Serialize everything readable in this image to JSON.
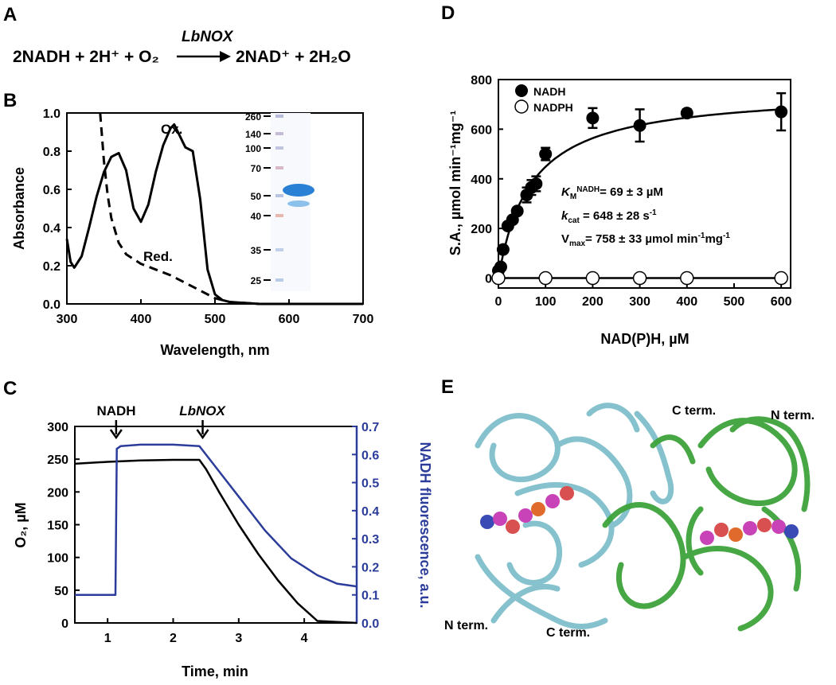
{
  "panels": {
    "A": {
      "letter": "A",
      "enzyme_label": "LbNOX",
      "eq_left": "2NADH + 2H⁺ + O₂",
      "eq_right": "2NAD⁺ + 2H₂O"
    },
    "B": {
      "letter": "B"
    },
    "C": {
      "letter": "C",
      "arrow1": "NADH",
      "arrow2": "LbNOX"
    },
    "D": {
      "letter": "D"
    },
    "E": {
      "letter": "E",
      "labels": {
        "c_term_center": "C term.",
        "n_term_right": "N term.",
        "n_term_left": "N term.",
        "c_term_bottom": "C term."
      }
    }
  },
  "chart_data": [
    {
      "panel": "B",
      "type": "line",
      "xlabel": "Wavelength, nm",
      "ylabel": "Absorbance",
      "xlim": [
        300,
        700
      ],
      "ylim": [
        0,
        1.0
      ],
      "xticks": [
        300,
        400,
        500,
        600,
        700
      ],
      "yticks": [
        0.0,
        0.2,
        0.4,
        0.6,
        0.8,
        1.0
      ],
      "series": [
        {
          "name": "Ox.",
          "style": "solid",
          "x": [
            300,
            305,
            310,
            320,
            330,
            340,
            350,
            360,
            370,
            380,
            390,
            400,
            410,
            420,
            430,
            440,
            445,
            450,
            460,
            470,
            480,
            490,
            500,
            510,
            520,
            540,
            560,
            600,
            650,
            700
          ],
          "y": [
            0.34,
            0.22,
            0.19,
            0.25,
            0.4,
            0.56,
            0.69,
            0.77,
            0.79,
            0.7,
            0.5,
            0.43,
            0.52,
            0.69,
            0.83,
            0.92,
            0.94,
            0.9,
            0.82,
            0.8,
            0.55,
            0.18,
            0.05,
            0.02,
            0.01,
            0.005,
            0.0,
            0.0,
            0.0,
            0.0
          ]
        },
        {
          "name": "Red.",
          "style": "dashed",
          "x": [
            345,
            350,
            355,
            360,
            370,
            380,
            400,
            420,
            440,
            460,
            480,
            500,
            520,
            560,
            600,
            700
          ],
          "y": [
            1.0,
            0.75,
            0.57,
            0.45,
            0.32,
            0.26,
            0.21,
            0.18,
            0.15,
            0.11,
            0.07,
            0.03,
            0.01,
            0.0,
            0.0,
            0.0
          ]
        }
      ],
      "gel_markers": [
        "260",
        "140",
        "100",
        "70",
        "50",
        "40",
        "35",
        "25"
      ]
    },
    {
      "panel": "C",
      "type": "line",
      "xlabel": "Time, min",
      "ylabel": "O₂, µM",
      "ylabel_right": "NADH fluorescence, a.u.",
      "xlim": [
        0.5,
        4.8
      ],
      "ylim": [
        0,
        300
      ],
      "ylim_right": [
        0,
        0.7
      ],
      "xticks": [
        1,
        2,
        3,
        4
      ],
      "yticks": [
        0,
        50,
        100,
        150,
        200,
        250,
        300
      ],
      "yticks_right": [
        0.0,
        0.1,
        0.2,
        0.3,
        0.4,
        0.5,
        0.6,
        0.7
      ],
      "series": [
        {
          "axis": "left",
          "color": "#000000",
          "x": [
            0.5,
            1.0,
            1.5,
            2.0,
            2.4,
            2.5,
            2.7,
            3.0,
            3.3,
            3.6,
            3.9,
            4.1,
            4.2,
            4.8
          ],
          "y": [
            243,
            246,
            248,
            249,
            249,
            235,
            200,
            150,
            105,
            65,
            30,
            12,
            3,
            0
          ]
        },
        {
          "axis": "right",
          "color": "#2b3c9a",
          "x": [
            0.5,
            1.12,
            1.14,
            1.2,
            1.5,
            2.0,
            2.4,
            2.6,
            3.0,
            3.4,
            3.8,
            4.2,
            4.5,
            4.8
          ],
          "y": [
            0.1,
            0.1,
            0.62,
            0.63,
            0.635,
            0.635,
            0.63,
            0.57,
            0.45,
            0.33,
            0.23,
            0.17,
            0.14,
            0.13
          ]
        }
      ],
      "arrows_at": [
        1.13,
        2.45
      ]
    },
    {
      "panel": "D",
      "type": "scatter",
      "xlabel": "NAD(P)H, µM",
      "ylabel": "S.A., µmol min⁻¹mg⁻¹",
      "xlim": [
        0,
        620
      ],
      "ylim": [
        0,
        800
      ],
      "xticks": [
        0,
        100,
        200,
        300,
        400,
        500,
        600
      ],
      "yticks": [
        0,
        200,
        400,
        600,
        800
      ],
      "series": [
        {
          "name": "NADH",
          "marker": "filled",
          "x": [
            0,
            5,
            10,
            20,
            30,
            40,
            60,
            70,
            80,
            100,
            200,
            300,
            400,
            600
          ],
          "y": [
            30,
            45,
            115,
            210,
            235,
            270,
            335,
            365,
            380,
            500,
            645,
            615,
            665,
            670
          ],
          "err": [
            0,
            0,
            0,
            0,
            0,
            0,
            30,
            30,
            30,
            25,
            40,
            65,
            15,
            75
          ]
        },
        {
          "name": "NADPH",
          "marker": "open",
          "x": [
            0,
            100,
            200,
            300,
            400,
            600
          ],
          "y": [
            0,
            0,
            0,
            0,
            0,
            0
          ]
        }
      ],
      "fit": {
        "vmax": 758,
        "km": 69
      },
      "annotations": {
        "km": "KMNADH= 69 ± 3 µM",
        "kcat": "kcat= 648 ± 28 s-1",
        "vmax": "Vmax= 758 ± 33 µmol min-1mg-1"
      }
    }
  ]
}
